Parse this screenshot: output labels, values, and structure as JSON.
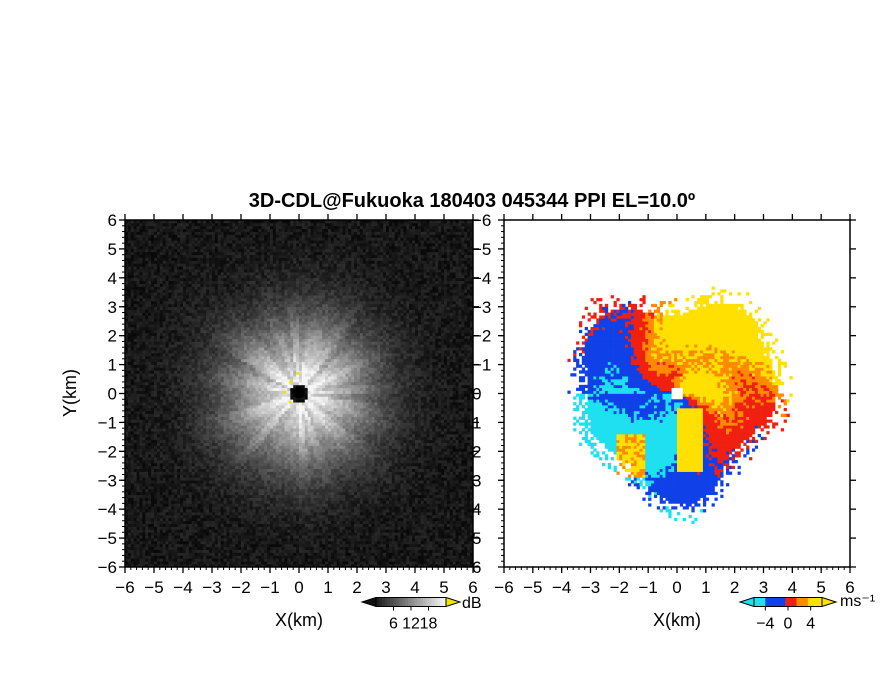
{
  "chart_data": {
    "title": "3D-CDL@Fukuoka 180403 045344 PPI EL=10.0º",
    "panels": [
      {
        "type": "heatmap",
        "quantity": "signal intensity",
        "xlabel": "X(km)",
        "ylabel": "Y(km)",
        "xlim": [
          -6,
          6
        ],
        "ylim": [
          -6,
          6
        ],
        "x_ticks": [
          "−6",
          "−5",
          "−4",
          "−3",
          "−2",
          "−1",
          "0",
          "1",
          "2",
          "3",
          "4",
          "5",
          "6"
        ],
        "y_ticks": [
          "−6",
          "−5",
          "−4",
          "−3",
          "−2",
          "−1",
          "0",
          "1",
          "2",
          "3",
          "4",
          "5",
          "6"
        ],
        "colormap": "grayscale",
        "colorbar": {
          "unit": "dB",
          "ticks": [
            "6",
            "12",
            "18"
          ],
          "range": [
            0,
            24
          ]
        },
        "colors": {
          "low": "#0a0a0a",
          "high": "#f4f4f4",
          "over": "#f2e600"
        }
      },
      {
        "type": "heatmap",
        "quantity": "Doppler velocity",
        "xlabel": "X(km)",
        "ylabel": "",
        "xlim": [
          -6,
          6
        ],
        "ylim": [
          -6,
          6
        ],
        "x_ticks": [
          "−6",
          "−5",
          "−4",
          "−3",
          "−2",
          "−1",
          "0",
          "1",
          "2",
          "3",
          "4",
          "5",
          "6"
        ],
        "y_ticks": [
          "6",
          "5",
          "4",
          "3",
          "2",
          "1",
          "0",
          "−1",
          "−2",
          "−3",
          "−4",
          "−5",
          "−6"
        ],
        "colormap": "diverging cyan-blue-red-yellow",
        "colorbar": {
          "unit": "ms⁻¹",
          "ticks": [
            "−4",
            "0",
            "4"
          ],
          "range": [
            -6,
            6
          ]
        },
        "colors": {
          "cyan": "#1ee0f0",
          "blue": "#1040e8",
          "red": "#f02010",
          "orange": "#ff8a00",
          "yellow": "#ffe000"
        }
      }
    ]
  }
}
